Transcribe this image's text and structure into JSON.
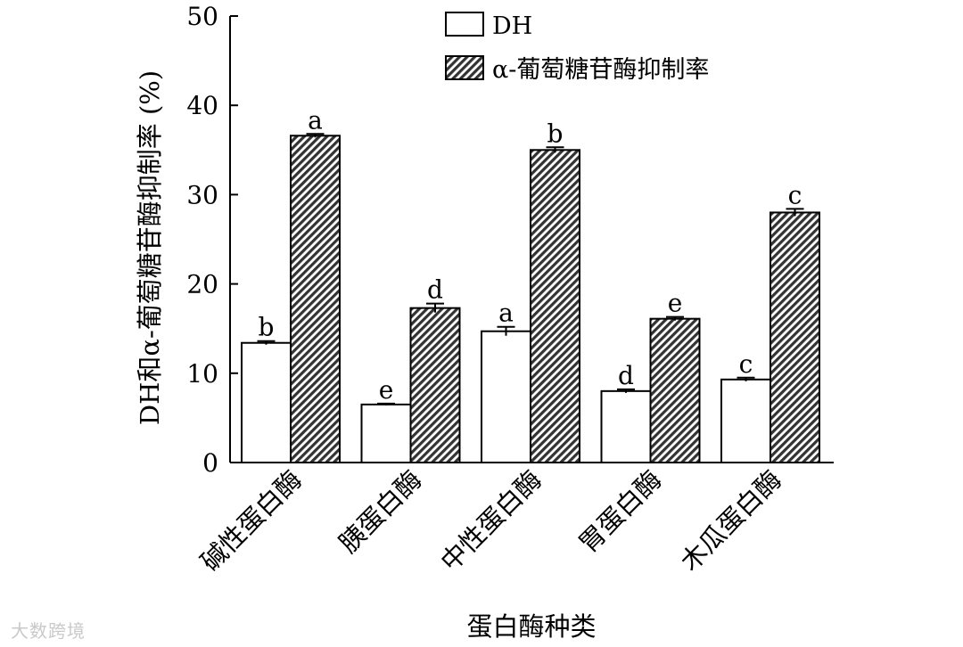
{
  "chart_data": {
    "type": "bar",
    "categories": [
      "碱性蛋白酶",
      "胰蛋白酶",
      "中性蛋白酶",
      "胃蛋白酶",
      "木瓜蛋白酶"
    ],
    "series": [
      {
        "name": "DH",
        "values": [
          13.4,
          6.5,
          14.7,
          8.0,
          9.3
        ],
        "errors": [
          0.2,
          0.1,
          0.5,
          0.2,
          0.2
        ],
        "letters": [
          "b",
          "e",
          "a",
          "d",
          "c"
        ],
        "fill": "#ffffff"
      },
      {
        "name": "α-葡萄糖苷酶抑制率",
        "values": [
          36.6,
          17.3,
          35.0,
          16.1,
          28.0
        ],
        "errors": [
          0.2,
          0.5,
          0.3,
          0.2,
          0.4
        ],
        "letters": [
          "a",
          "d",
          "b",
          "e",
          "c"
        ],
        "fill": "hatched"
      }
    ],
    "ylabel": "DH和α-葡萄糖苷酶抑制率 (%)",
    "xlabel": "蛋白酶种类",
    "ylim": [
      0,
      50
    ],
    "yticks": [
      "0",
      "10",
      "20",
      "30",
      "40",
      "50"
    ],
    "legend_position": "top-center",
    "grid": false
  },
  "watermark": "大数跨境",
  "colors": {
    "bar_stroke": "#000000",
    "hatch": "#333333",
    "watermark": "#c9c9c9"
  }
}
